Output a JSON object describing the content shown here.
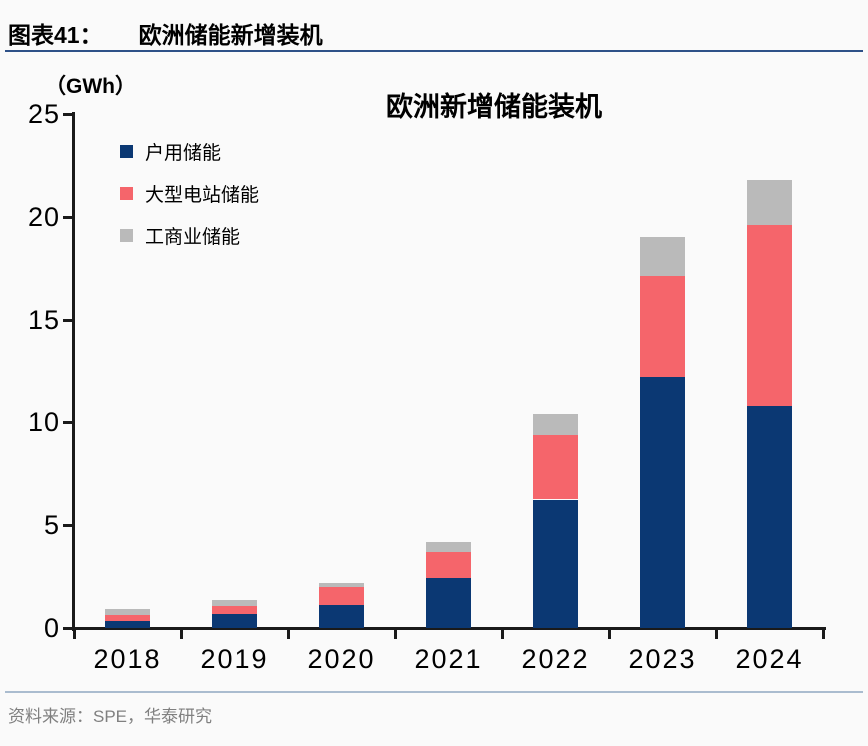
{
  "page": {
    "figure_label": "图表41：",
    "figure_title": "欧洲储能新增装机",
    "source_text": "资料来源：SPE，华泰研究"
  },
  "chart_data": {
    "type": "bar",
    "stacked": true,
    "title": "欧洲新增储能装机",
    "unit_label": "（GWh）",
    "xlabel": "",
    "ylabel": "GWh",
    "categories": [
      "2018",
      "2019",
      "2020",
      "2021",
      "2022",
      "2023",
      "2024"
    ],
    "series": [
      {
        "name": "户用储能",
        "color": "#0b3873",
        "values": [
          0.35,
          0.7,
          1.1,
          2.45,
          6.25,
          12.2,
          10.8
        ]
      },
      {
        "name": "大型电站储能",
        "color": "#f5656b",
        "values": [
          0.3,
          0.35,
          0.9,
          1.25,
          3.15,
          4.9,
          8.8
        ]
      },
      {
        "name": "工商业储能",
        "color": "#bababa",
        "values": [
          0.25,
          0.3,
          0.2,
          0.5,
          1.0,
          1.9,
          2.2
        ]
      }
    ],
    "totals": [
      0.9,
      1.35,
      2.2,
      4.2,
      10.4,
      19.0,
      21.8
    ],
    "ylim": [
      0,
      25
    ],
    "y_ticks": [
      0,
      5,
      10,
      15,
      20,
      25
    ],
    "grid": false,
    "legend_position": "upper-left"
  },
  "colors": {
    "axis": "#1a1a1a",
    "header_rule": "#2e5188",
    "footer_rule": "#aabccf",
    "source_text": "#808080",
    "background": "#fafafa"
  }
}
